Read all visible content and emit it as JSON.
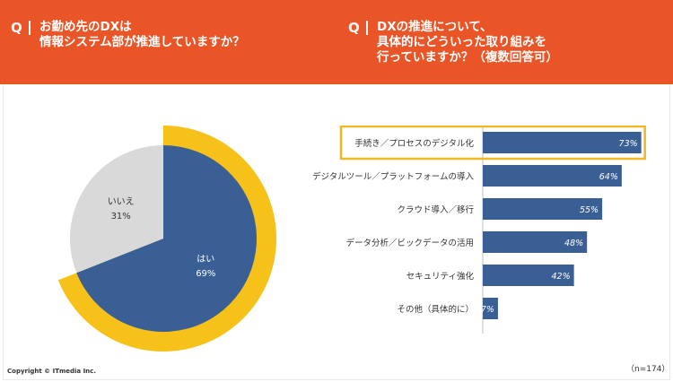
{
  "questions": {
    "left": {
      "mark": "Q",
      "lines": [
        "お勤め先のDXは",
        "情報システム部が推進していますか？"
      ]
    },
    "right": {
      "mark": "Q",
      "lines": [
        "DXの推進について、",
        "具体的にどういった取り組みを",
        "行っていますか？（複数回答可）"
      ]
    }
  },
  "colors": {
    "header": "#ea5527",
    "blue": "#3a5f95",
    "gray": "#d9d9d9",
    "yellow": "#f6c21a",
    "highlight": "#f0b820"
  },
  "chart_data": [
    {
      "type": "pie",
      "slices": [
        {
          "label": "はい",
          "value": 69,
          "value_label": "69%"
        },
        {
          "label": "いいえ",
          "value": 31,
          "value_label": "31%"
        }
      ]
    },
    {
      "type": "bar",
      "orientation": "horizontal",
      "categories": [
        "手続き／プロセスのデジタル化",
        "デジタルツール／プラットフォームの導入",
        "クラウド導入／移行",
        "データ分析／ビックデータの活用",
        "セキュリティ強化",
        "その他（具体的に）"
      ],
      "values": [
        73,
        64,
        55,
        48,
        42,
        7
      ],
      "value_labels": [
        "73%",
        "64%",
        "55%",
        "48%",
        "42%",
        "7%"
      ],
      "highlighted_index": 0,
      "xlim": [
        0,
        100
      ]
    }
  ],
  "footer": {
    "copyright": "Copyright © ITmedia Inc.",
    "n": "（n=174）"
  }
}
